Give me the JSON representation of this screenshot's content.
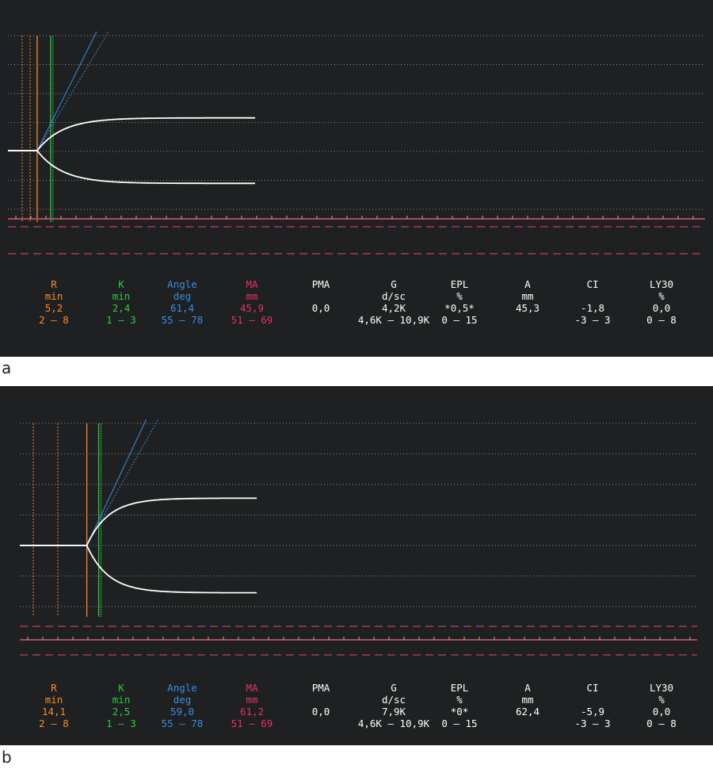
{
  "colors": {
    "background": "#1e2021",
    "trace": "#ffffff",
    "R": "#ff8a2a",
    "K": "#2ecc40",
    "Angle": "#3b8fe0",
    "MA": "#e8306a",
    "text": "#ffffff",
    "baseline": "#a84a6a",
    "dashed": "#c0406a",
    "grid": "#8a8a8a"
  },
  "chart_data": [
    {
      "type": "line",
      "panel_label": "a",
      "params": [
        {
          "name": "R",
          "unit": "min",
          "value": "5,2",
          "range": "2 — 8",
          "color": "R"
        },
        {
          "name": "K",
          "unit": "min",
          "value": "2,4",
          "range": "1 — 3",
          "color": "K"
        },
        {
          "name": "Angle",
          "unit": "deg",
          "value": "61,4",
          "range": "55 — 78",
          "color": "Angle"
        },
        {
          "name": "MA",
          "unit": "mm",
          "value": "45,9",
          "range": "51 — 69",
          "color": "MA"
        },
        {
          "name": "PMA",
          "unit": "",
          "value": "0,0",
          "range": "",
          "color": "text"
        },
        {
          "name": "G",
          "unit": "d/sc",
          "value": "4,2K",
          "range": "4,6K — 10,9K",
          "color": "text"
        },
        {
          "name": "EPL",
          "unit": "%",
          "value": "*0,5*",
          "range": "0 — 15",
          "color": "text"
        },
        {
          "name": "A",
          "unit": "mm",
          "value": "45,3",
          "range": "",
          "color": "text"
        },
        {
          "name": "CI",
          "unit": "",
          "value": "-1,8",
          "range": "-3 — 3",
          "color": "text"
        },
        {
          "name": "LY30",
          "unit": "%",
          "value": "0,0",
          "range": "0 — 8",
          "color": "text"
        }
      ],
      "trace": {
        "R_min": 5.2,
        "K_min": 2.4,
        "MA_mm": 45.9,
        "tail_min": 44
      },
      "grid": true
    },
    {
      "type": "line",
      "panel_label": "b",
      "params": [
        {
          "name": "R",
          "unit": "min",
          "value": "14,1",
          "range": "2 — 8",
          "color": "R"
        },
        {
          "name": "K",
          "unit": "min",
          "value": "2,5",
          "range": "1 — 3",
          "color": "K"
        },
        {
          "name": "Angle",
          "unit": "deg",
          "value": "59,0",
          "range": "55 — 78",
          "color": "Angle"
        },
        {
          "name": "MA",
          "unit": "mm",
          "value": "61,2",
          "range": "51 — 69",
          "color": "MA"
        },
        {
          "name": "PMA",
          "unit": "",
          "value": "0,0",
          "range": "",
          "color": "text"
        },
        {
          "name": "G",
          "unit": "d/sc",
          "value": "7,9K",
          "range": "4,6K — 10,9K",
          "color": "text"
        },
        {
          "name": "EPL",
          "unit": "%",
          "value": "*0*",
          "range": "0 — 15",
          "color": "text"
        },
        {
          "name": "A",
          "unit": "mm",
          "value": "62,4",
          "range": "",
          "color": "text"
        },
        {
          "name": "CI",
          "unit": "",
          "value": "-5,9",
          "range": "-3 — 3",
          "color": "text"
        },
        {
          "name": "LY30",
          "unit": "%",
          "value": "0,0",
          "range": "0 — 8",
          "color": "text"
        }
      ],
      "trace": {
        "R_min": 14.1,
        "K_min": 2.5,
        "MA_mm": 61.2,
        "tail_min": 50
      },
      "grid": true
    }
  ]
}
